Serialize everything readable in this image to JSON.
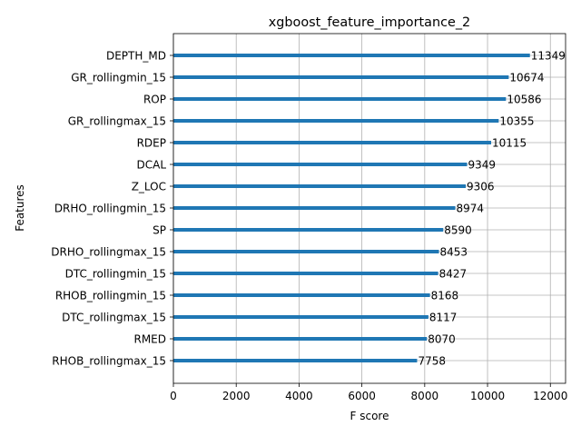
{
  "chart_data": {
    "type": "bar",
    "orientation": "horizontal",
    "title": "xgboost_feature_importance_2",
    "xlabel": "F score",
    "ylabel": "Features",
    "categories": [
      "DEPTH_MD",
      "GR_rollingmin_15",
      "ROP",
      "GR_rollingmax_15",
      "RDEP",
      "DCAL",
      "Z_LOC",
      "DRHO_rollingmin_15",
      "SP",
      "DRHO_rollingmax_15",
      "DTC_rollingmin_15",
      "RHOB_rollingmin_15",
      "DTC_rollingmax_15",
      "RMED",
      "RHOB_rollingmax_15"
    ],
    "values": [
      11349,
      10674,
      10586,
      10355,
      10115,
      9349,
      9306,
      8974,
      8590,
      8453,
      8427,
      8168,
      8117,
      8070,
      7758
    ],
    "xlim": [
      0,
      12484
    ],
    "xticks": [
      0,
      2000,
      4000,
      6000,
      8000,
      10000,
      12000
    ],
    "grid": true,
    "bar_color": "#1f77b4",
    "data_labels": true
  }
}
